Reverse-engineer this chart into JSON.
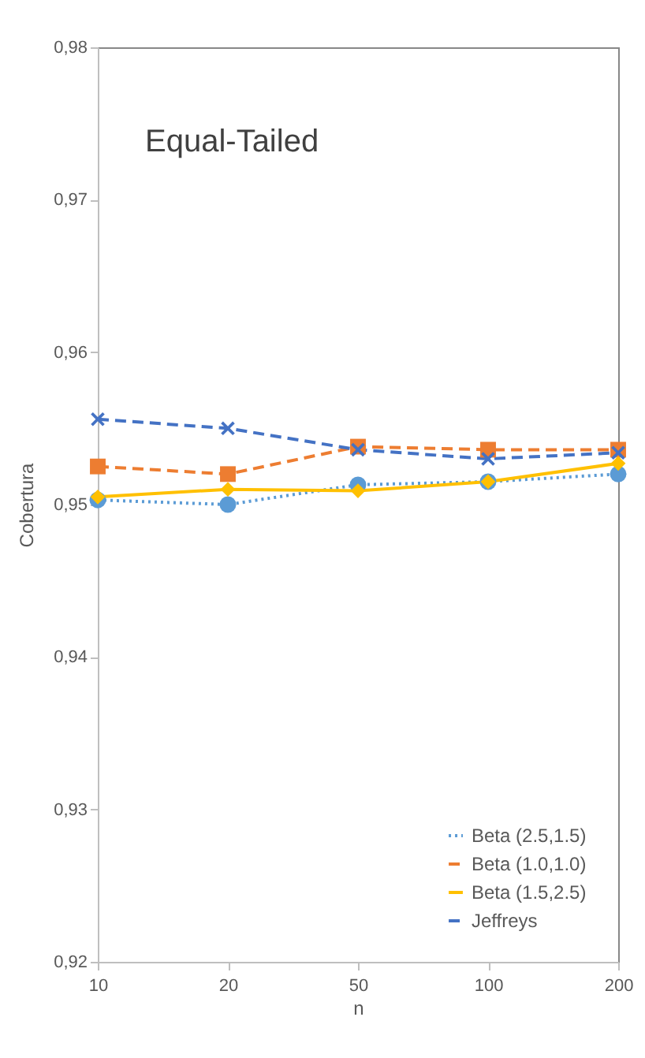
{
  "chart_data": {
    "type": "line",
    "xlabel": "n",
    "ylabel": "Cobertura",
    "annotations": [
      "Equal-Tailed"
    ],
    "categories": [
      "10",
      "20",
      "50",
      "100",
      "200"
    ],
    "series": [
      {
        "name": "Beta (2.5,1.5)",
        "color": "#5b9bd5",
        "line_style": "dotted",
        "marker": "circle",
        "values": [
          0.9503,
          0.95,
          0.9513,
          0.9515,
          0.952
        ]
      },
      {
        "name": "Beta (1.0,1.0)",
        "color": "#ed7d31",
        "line_style": "dashed",
        "marker": "square",
        "values": [
          0.9525,
          0.952,
          0.9538,
          0.9536,
          0.9536
        ]
      },
      {
        "name": "Beta (1.5,2.5)",
        "color": "#ffc000",
        "line_style": "solid",
        "marker": "diamond",
        "values": [
          0.9505,
          0.951,
          0.9509,
          0.9515,
          0.9527
        ]
      },
      {
        "name": "Jeffreys",
        "color": "#4472c4",
        "line_style": "dashed",
        "marker": "cross",
        "values": [
          0.9556,
          0.955,
          0.9536,
          0.953,
          0.9534
        ]
      }
    ],
    "ylim": [
      0.92,
      0.98
    ],
    "yticks": [
      {
        "value": 0.92,
        "label": "0,92"
      },
      {
        "value": 0.93,
        "label": "0,93"
      },
      {
        "value": 0.94,
        "label": "0,94"
      },
      {
        "value": 0.95,
        "label": "0,95"
      },
      {
        "value": 0.96,
        "label": "0,96"
      },
      {
        "value": 0.97,
        "label": "0,97"
      },
      {
        "value": 0.98,
        "label": "0,98"
      }
    ],
    "grid": false,
    "legend": "bottom right"
  }
}
